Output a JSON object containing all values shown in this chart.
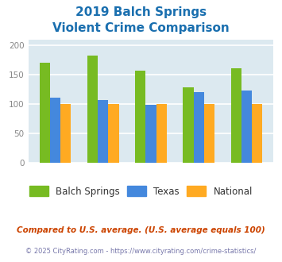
{
  "title_line1": "2019 Balch Springs",
  "title_line2": "Violent Crime Comparison",
  "title_color": "#1a6faf",
  "balch_springs": [
    170,
    182,
    157,
    128,
    160
  ],
  "texas": [
    110,
    106,
    98,
    120,
    123
  ],
  "national": [
    100,
    100,
    100,
    100,
    100
  ],
  "balch_color": "#77bb22",
  "texas_color": "#4488dd",
  "national_color": "#ffaa22",
  "ylim": [
    0,
    210
  ],
  "yticks": [
    0,
    50,
    100,
    150,
    200
  ],
  "background_color": "#dce9f0",
  "grid_color": "#ffffff",
  "footnote1": "Compared to U.S. average. (U.S. average equals 100)",
  "footnote2": "© 2025 CityRating.com - https://www.cityrating.com/crime-statistics/",
  "footnote1_color": "#cc4400",
  "footnote2_color": "#7777aa",
  "label_color": "#aaaaaa",
  "legend_text_color": "#333333"
}
